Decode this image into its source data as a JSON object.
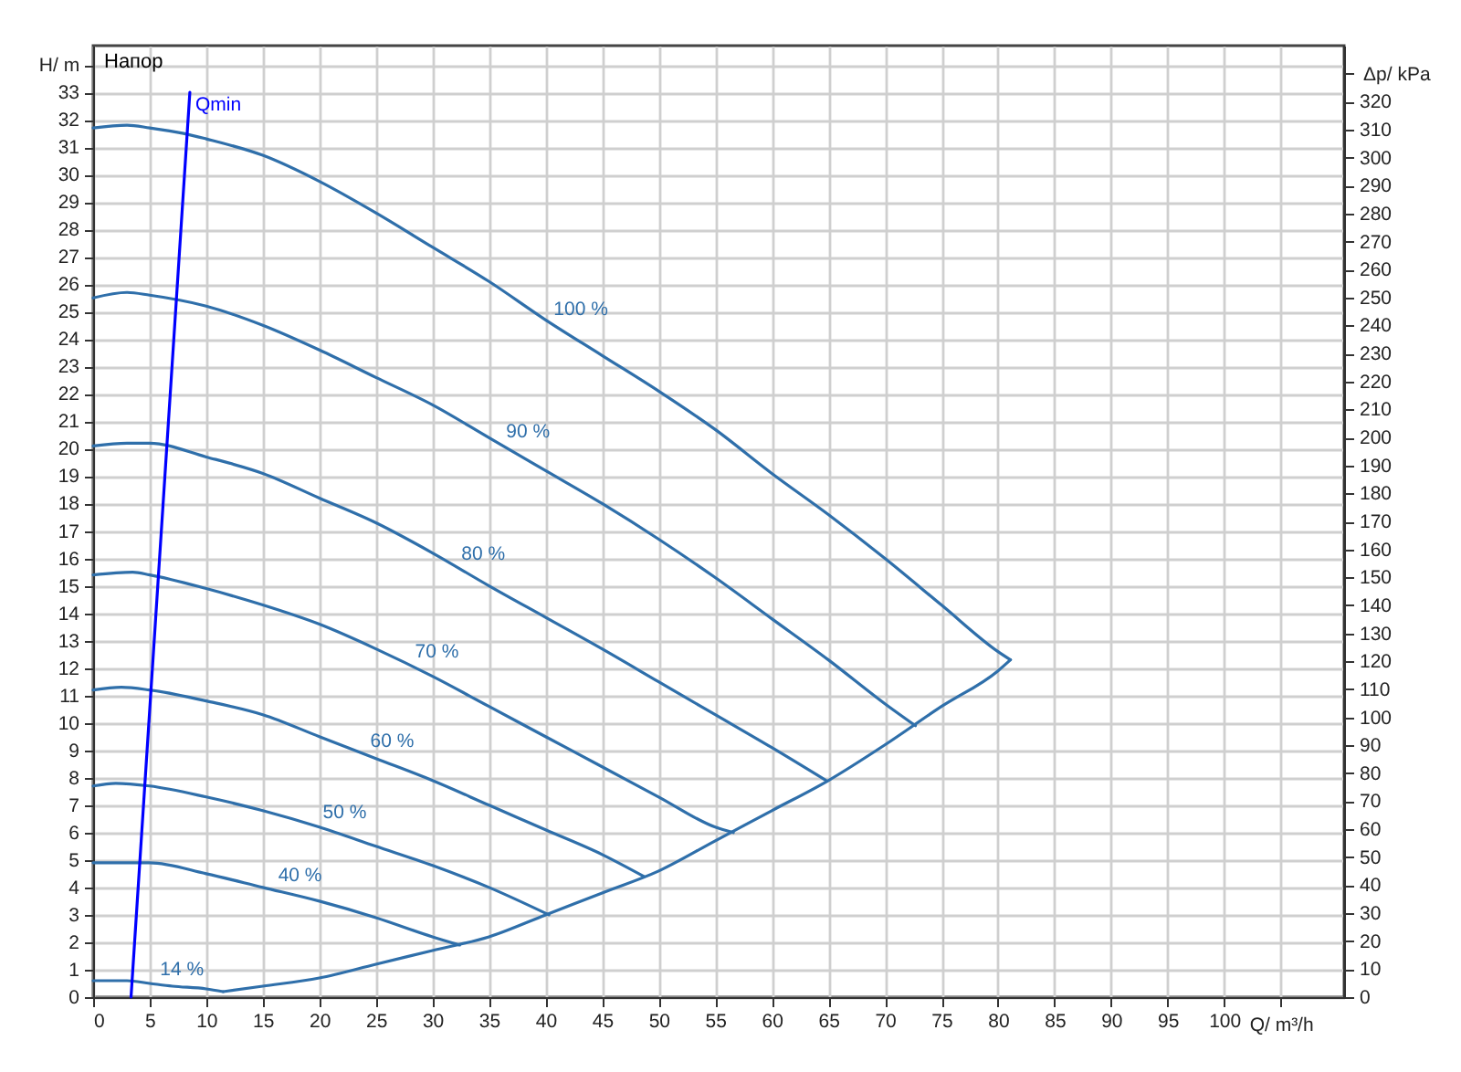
{
  "chart_data": {
    "type": "line",
    "title": "Напор",
    "xlabel": "Q/ m³/h",
    "ylabel": "H/ m",
    "y2label": "Δp/ kPa",
    "xlim": [
      0,
      110.6
    ],
    "xticks": [
      0,
      5,
      10,
      15,
      20,
      25,
      30,
      35,
      40,
      45,
      50,
      55,
      60,
      65,
      70,
      75,
      80,
      85,
      90,
      95,
      100,
      {
        "value": 105,
        "label": null
      }
    ],
    "ylim": [
      0,
      34.7
    ],
    "yticks": [
      0,
      1,
      2,
      3,
      4,
      5,
      6,
      7,
      8,
      9,
      10,
      11,
      12,
      13,
      14,
      15,
      16,
      17,
      18,
      19,
      20,
      21,
      22,
      23,
      24,
      25,
      26,
      27,
      28,
      29,
      30,
      31,
      32,
      33,
      {
        "value": 34,
        "label": null
      }
    ],
    "y2lim": [
      0,
      340
    ],
    "y2ticks": [
      0,
      10,
      20,
      30,
      40,
      50,
      60,
      70,
      80,
      90,
      100,
      110,
      120,
      130,
      140,
      150,
      160,
      170,
      180,
      190,
      200,
      210,
      220,
      230,
      240,
      250,
      260,
      270,
      280,
      290,
      300,
      310,
      320,
      {
        "value": 330,
        "label": null
      }
    ],
    "grid": true,
    "marker": "none",
    "line_style": "solid",
    "series": [
      {
        "name": "100 %",
        "color": "#2f6faa",
        "x": [
          0,
          3,
          5,
          8,
          10,
          15,
          20,
          25,
          30,
          35,
          40,
          45,
          50,
          55,
          60,
          65,
          70,
          75,
          80,
          81.1
        ],
        "values": [
          31.7,
          31.8,
          31.7,
          31.5,
          31.3,
          30.7,
          29.75,
          28.6,
          27.35,
          26.1,
          24.7,
          23.4,
          22.1,
          20.7,
          19.1,
          17.6,
          16.0,
          14.3,
          12.6,
          12.3
        ]
      },
      {
        "name": "90 %",
        "color": "#2f6faa",
        "x": [
          0,
          3,
          5,
          10,
          15,
          20,
          25,
          30,
          35,
          40,
          45,
          50,
          55,
          60,
          65,
          70,
          72.7
        ],
        "values": [
          25.5,
          25.7,
          25.6,
          25.2,
          24.5,
          23.6,
          22.6,
          21.6,
          20.4,
          19.2,
          18.0,
          16.7,
          15.3,
          13.8,
          12.3,
          10.7,
          9.9
        ]
      },
      {
        "name": "80 %",
        "color": "#2f6faa",
        "x": [
          0,
          3,
          5,
          10,
          15,
          20,
          25,
          30,
          35,
          40,
          45,
          50,
          55,
          60,
          64.8
        ],
        "values": [
          20.1,
          20.2,
          20.2,
          19.7,
          19.1,
          18.2,
          17.3,
          16.2,
          15.0,
          13.85,
          12.7,
          11.5,
          10.3,
          9.1,
          7.9
        ]
      },
      {
        "name": "70 %",
        "color": "#2f6faa",
        "x": [
          0,
          3.5,
          5,
          10,
          15,
          20,
          25,
          30,
          35,
          40,
          45,
          50,
          55,
          56.6
        ],
        "values": [
          15.4,
          15.5,
          15.4,
          14.9,
          14.3,
          13.6,
          12.7,
          11.7,
          10.6,
          9.5,
          8.4,
          7.3,
          6.2,
          6.0
        ]
      },
      {
        "name": "60 %",
        "color": "#2f6faa",
        "x": [
          0,
          2.5,
          5,
          10,
          15,
          20,
          25,
          30,
          35,
          40,
          45,
          48.7
        ],
        "values": [
          11.2,
          11.3,
          11.2,
          10.8,
          10.3,
          9.5,
          8.7,
          7.9,
          7.0,
          6.1,
          5.2,
          4.4
        ]
      },
      {
        "name": "50 %",
        "color": "#2f6faa",
        "x": [
          0,
          2,
          5,
          10,
          15,
          20,
          25,
          30,
          35,
          40.3
        ],
        "values": [
          7.7,
          7.8,
          7.7,
          7.3,
          6.8,
          6.2,
          5.5,
          4.8,
          4.0,
          3.0
        ]
      },
      {
        "name": "40 %",
        "color": "#2f6faa",
        "x": [
          0,
          4,
          5,
          10,
          15,
          20,
          25,
          30,
          32.4
        ],
        "values": [
          4.9,
          4.9,
          4.9,
          4.5,
          4.0,
          3.5,
          2.9,
          2.2,
          1.9
        ]
      },
      {
        "name": "14 %",
        "color": "#2f6faa",
        "x": [
          0,
          3,
          5,
          7,
          10,
          11.5
        ],
        "values": [
          0.6,
          0.6,
          0.5,
          0.4,
          0.3,
          0.2
        ]
      },
      {
        "color": "#2f6faa",
        "x": [
          11.5,
          15,
          20,
          25,
          30,
          35,
          40,
          45,
          50,
          55,
          60,
          65,
          70,
          75,
          80,
          81.1
        ],
        "values": [
          0.2,
          0.4,
          0.7,
          1.2,
          1.7,
          2.2,
          3.0,
          3.8,
          4.6,
          5.7,
          6.8,
          7.9,
          9.2,
          10.6,
          11.9,
          12.3
        ]
      },
      {
        "name": "Qmin",
        "color": "#0000ff",
        "x": [
          3.35,
          8.55
        ],
        "values": [
          0,
          33
        ]
      }
    ]
  }
}
